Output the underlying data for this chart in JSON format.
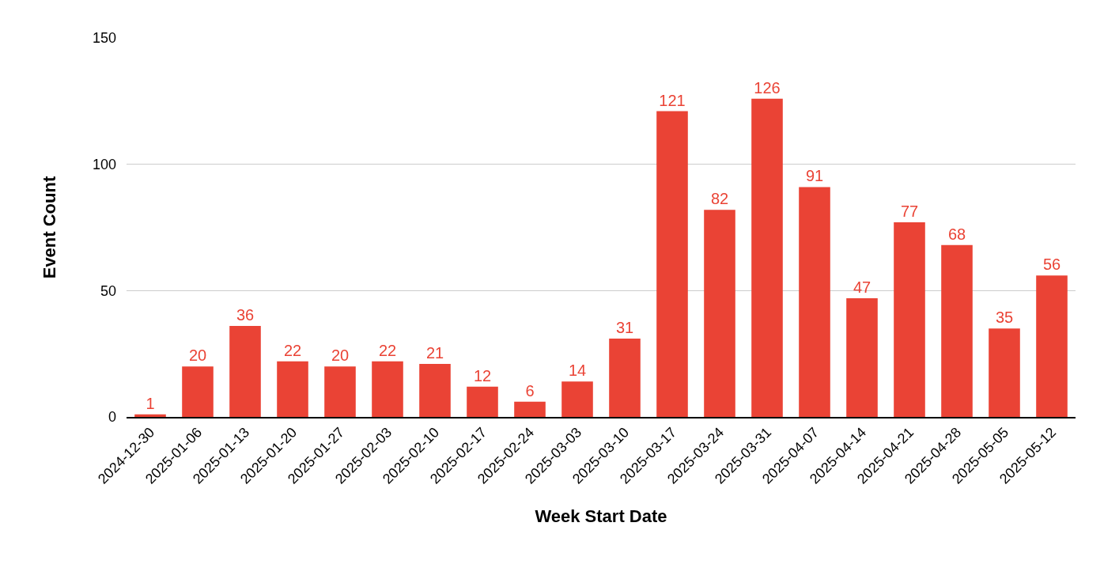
{
  "chart_data": {
    "type": "bar",
    "xlabel": "Week Start Date",
    "ylabel": "Event Count",
    "categories": [
      "2024-12-30",
      "2025-01-06",
      "2025-01-13",
      "2025-01-20",
      "2025-01-27",
      "2025-02-03",
      "2025-02-10",
      "2025-02-17",
      "2025-02-24",
      "2025-03-03",
      "2025-03-10",
      "2025-03-17",
      "2025-03-24",
      "2025-03-31",
      "2025-04-07",
      "2025-04-14",
      "2025-04-21",
      "2025-04-28",
      "2025-05-05",
      "2025-05-12"
    ],
    "values": [
      1,
      20,
      36,
      22,
      20,
      22,
      21,
      12,
      6,
      14,
      31,
      121,
      82,
      126,
      91,
      47,
      77,
      68,
      35,
      56
    ],
    "color": "#ea4335",
    "ylim": [
      0,
      150
    ],
    "yticks": [
      0,
      50,
      100,
      150
    ],
    "grid": "y",
    "data_labels": true
  }
}
